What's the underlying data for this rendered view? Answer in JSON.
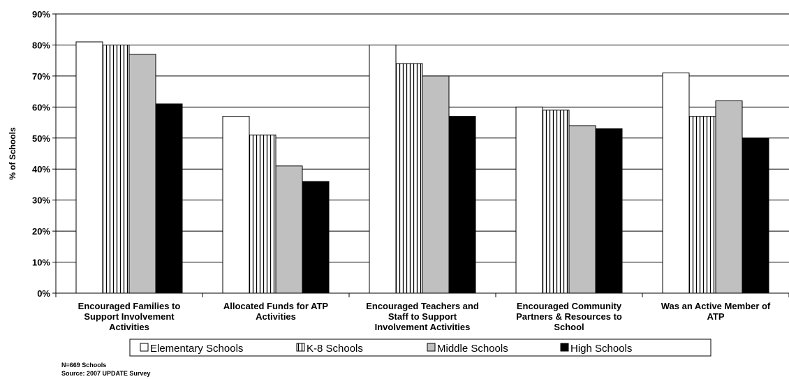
{
  "chart_data": {
    "type": "bar",
    "categories": [
      [
        "Encouraged Families to",
        "Support Involvement",
        "Activities"
      ],
      [
        "Allocated Funds for ATP",
        "Activities"
      ],
      [
        "Encouraged Teachers and",
        "Staff to Support",
        "Involvement Activities"
      ],
      [
        "Encouraged Community",
        "Partners & Resources to",
        "School"
      ],
      [
        "Was an Active Member of",
        "ATP"
      ]
    ],
    "series": [
      {
        "name": "Elementary Schools",
        "values": [
          81,
          57,
          80,
          60,
          71
        ],
        "fill": "#ffffff",
        "pattern": "none"
      },
      {
        "name": "K-8 Schools",
        "values": [
          80,
          51,
          74,
          59,
          57
        ],
        "fill": "#ffffff",
        "pattern": "vertical-stripes"
      },
      {
        "name": "Middle Schools",
        "values": [
          77,
          41,
          70,
          54,
          62
        ],
        "fill": "#c0c0c0",
        "pattern": "none"
      },
      {
        "name": "High Schools",
        "values": [
          61,
          36,
          57,
          53,
          50
        ],
        "fill": "#000000",
        "pattern": "none"
      }
    ],
    "ylabel": "% of Schools",
    "ylim": [
      0,
      90
    ],
    "yticks": [
      "0%",
      "10%",
      "20%",
      "30%",
      "40%",
      "50%",
      "60%",
      "70%",
      "80%",
      "90%"
    ],
    "grid": true,
    "legend_position": "bottom"
  },
  "footnotes": [
    "N=669 Schools",
    "Source: 2007 UPDATE Survey"
  ]
}
